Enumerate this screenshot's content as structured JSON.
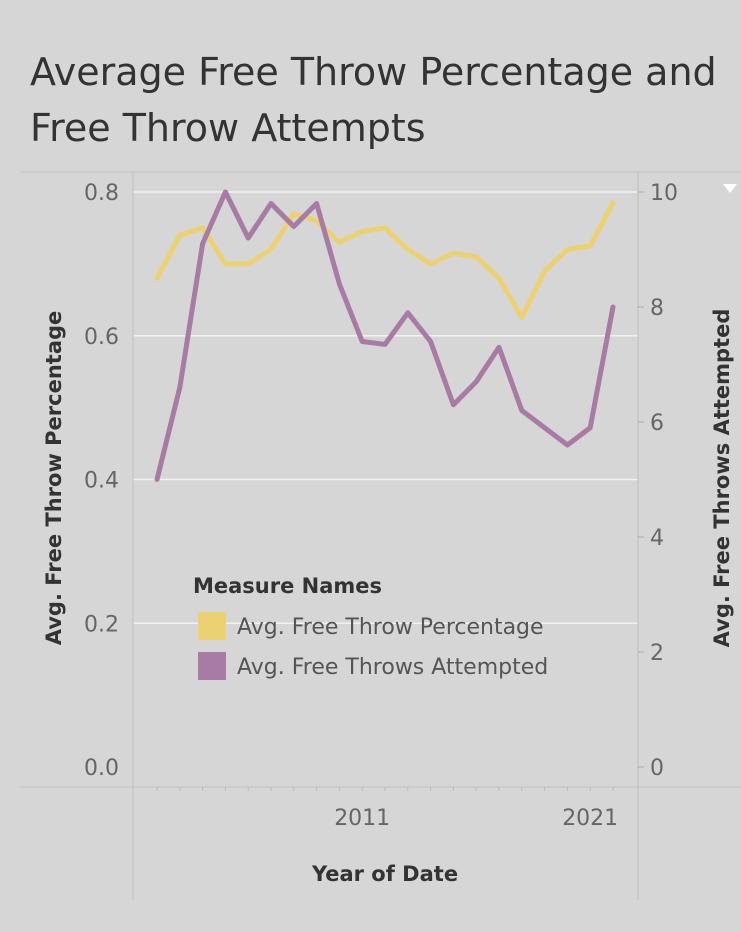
{
  "title": "Average Free Throw Percentage and Free Throw Attempts",
  "colors": {
    "background": "#d6d6d6",
    "gridline": "#f2f2f2",
    "axis": "#c0c0c0",
    "pct_series": "#ecd170",
    "fta_series": "#a87ba4"
  },
  "chart_data": {
    "type": "line",
    "xlabel": "Year of Date",
    "x": [
      2002,
      2003,
      2004,
      2005,
      2006,
      2007,
      2008,
      2009,
      2010,
      2011,
      2012,
      2013,
      2014,
      2015,
      2016,
      2017,
      2018,
      2019,
      2020,
      2021,
      2022,
      2023
    ],
    "x_ticks": [
      {
        "value": 2011,
        "label": "2011"
      },
      {
        "value": 2021,
        "label": "2021"
      }
    ],
    "xlim": [
      2002,
      2023
    ],
    "left_axis": {
      "label": "Avg. Free Throw Percentage",
      "ylim": [
        0,
        0.8
      ],
      "ticks": [
        {
          "value": 0.0,
          "label": "0.0"
        },
        {
          "value": 0.2,
          "label": "0.2"
        },
        {
          "value": 0.4,
          "label": "0.4"
        },
        {
          "value": 0.6,
          "label": "0.6"
        },
        {
          "value": 0.8,
          "label": "0.8"
        }
      ]
    },
    "right_axis": {
      "label": "Avg. Free Throws Attempted",
      "ylim": [
        0,
        10
      ],
      "ticks": [
        {
          "value": 0,
          "label": "0"
        },
        {
          "value": 2,
          "label": "2"
        },
        {
          "value": 4,
          "label": "4"
        },
        {
          "value": 6,
          "label": "6"
        },
        {
          "value": 8,
          "label": "8"
        },
        {
          "value": 10,
          "label": "10"
        }
      ]
    },
    "series": [
      {
        "name": "Avg. Free Throw Percentage",
        "axis": "left",
        "color": "#ecd170",
        "values": [
          0.68,
          0.74,
          0.75,
          0.7,
          0.7,
          0.72,
          0.77,
          0.76,
          0.73,
          0.745,
          0.75,
          0.72,
          0.7,
          0.715,
          0.71,
          0.68,
          0.625,
          0.69,
          0.72,
          0.725,
          0.785,
          null
        ]
      },
      {
        "name": "Avg. Free Throws Attempted",
        "axis": "right",
        "color": "#a87ba4",
        "values": [
          5.0,
          6.6,
          9.1,
          10.0,
          9.2,
          9.8,
          9.4,
          9.8,
          8.4,
          7.4,
          7.35,
          7.9,
          7.4,
          6.3,
          6.7,
          7.3,
          6.2,
          5.9,
          5.6,
          5.9,
          8.0,
          null
        ]
      }
    ],
    "legend": {
      "title": "Measure Names",
      "placement": "bottom-left-inside",
      "items": [
        "Avg. Free Throw Percentage",
        "Avg. Free Throws Attempted"
      ]
    },
    "grid": true
  }
}
